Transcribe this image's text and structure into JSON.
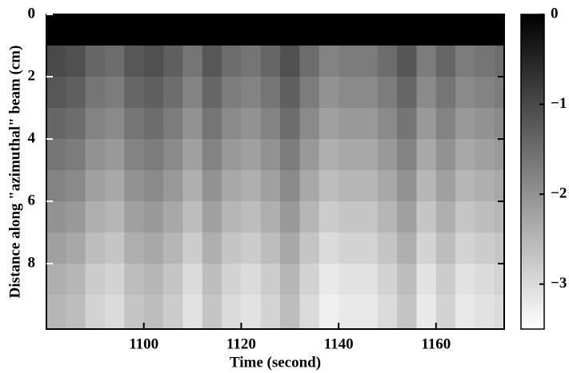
{
  "chart_data": {
    "type": "heatmap",
    "xlabel": "Time (second)",
    "ylabel": "Distance along  \"azimuthal\" beam (cm)",
    "x": [
      1082,
      1086,
      1090,
      1094,
      1098,
      1102,
      1106,
      1110,
      1114,
      1118,
      1122,
      1126,
      1130,
      1134,
      1138,
      1142,
      1146,
      1150,
      1154,
      1158,
      1162,
      1166,
      1170,
      1174
    ],
    "y": [
      0.5,
      1.5,
      2.5,
      3.5,
      4.5,
      5.5,
      6.5,
      7.5,
      8.5,
      9.5
    ],
    "z": [
      [
        0,
        0,
        0,
        0,
        0,
        0,
        0,
        0,
        0,
        0,
        0,
        0,
        0,
        0,
        0,
        0,
        0,
        0,
        0,
        0,
        0,
        0,
        0,
        0
      ],
      [
        -1.0,
        -1.1,
        -1.4,
        -1.5,
        -1.2,
        -1.1,
        -1.3,
        -1.6,
        -1.2,
        -1.5,
        -1.6,
        -1.4,
        -1.1,
        -1.5,
        -1.8,
        -1.7,
        -1.7,
        -1.5,
        -1.2,
        -1.7,
        -1.4,
        -1.7,
        -1.6,
        -1.5
      ],
      [
        -1.2,
        -1.3,
        -1.6,
        -1.7,
        -1.4,
        -1.3,
        -1.5,
        -1.8,
        -1.4,
        -1.7,
        -1.8,
        -1.6,
        -1.3,
        -1.7,
        -2.0,
        -1.9,
        -1.9,
        -1.7,
        -1.4,
        -1.9,
        -1.6,
        -1.9,
        -1.8,
        -1.7
      ],
      [
        -1.4,
        -1.5,
        -1.8,
        -1.9,
        -1.6,
        -1.5,
        -1.7,
        -2.0,
        -1.6,
        -1.9,
        -2.0,
        -1.8,
        -1.5,
        -1.9,
        -2.2,
        -2.1,
        -2.1,
        -1.9,
        -1.6,
        -2.1,
        -1.8,
        -2.1,
        -2.0,
        -1.9
      ],
      [
        -1.6,
        -1.7,
        -2.0,
        -2.1,
        -1.8,
        -1.7,
        -1.9,
        -2.2,
        -1.8,
        -2.1,
        -2.2,
        -2.0,
        -1.7,
        -2.1,
        -2.4,
        -2.3,
        -2.3,
        -2.1,
        -1.8,
        -2.3,
        -2.0,
        -2.3,
        -2.2,
        -2.1
      ],
      [
        -1.8,
        -1.9,
        -2.2,
        -2.3,
        -2.0,
        -1.9,
        -2.1,
        -2.4,
        -2.0,
        -2.3,
        -2.4,
        -2.2,
        -1.9,
        -2.3,
        -2.6,
        -2.5,
        -2.5,
        -2.3,
        -2.0,
        -2.5,
        -2.2,
        -2.5,
        -2.4,
        -2.3
      ],
      [
        -2.0,
        -2.1,
        -2.4,
        -2.5,
        -2.2,
        -2.1,
        -2.3,
        -2.6,
        -2.2,
        -2.5,
        -2.6,
        -2.4,
        -2.1,
        -2.5,
        -2.8,
        -2.7,
        -2.7,
        -2.5,
        -2.2,
        -2.7,
        -2.4,
        -2.7,
        -2.6,
        -2.5
      ],
      [
        -2.2,
        -2.3,
        -2.6,
        -2.7,
        -2.4,
        -2.3,
        -2.5,
        -2.8,
        -2.4,
        -2.7,
        -2.8,
        -2.6,
        -2.3,
        -2.7,
        -3.0,
        -2.9,
        -2.9,
        -2.7,
        -2.4,
        -2.9,
        -2.6,
        -2.9,
        -2.8,
        -2.7
      ],
      [
        -2.4,
        -2.5,
        -2.8,
        -2.9,
        -2.6,
        -2.5,
        -2.7,
        -3.0,
        -2.6,
        -2.9,
        -3.0,
        -2.8,
        -2.5,
        -2.9,
        -3.2,
        -3.1,
        -3.1,
        -2.9,
        -2.6,
        -3.1,
        -2.8,
        -3.1,
        -3.0,
        -2.9
      ],
      [
        -2.5,
        -2.6,
        -2.9,
        -3.0,
        -2.7,
        -2.6,
        -2.8,
        -3.1,
        -2.7,
        -3.0,
        -3.1,
        -2.9,
        -2.6,
        -3.0,
        -3.3,
        -3.2,
        -3.2,
        -3.0,
        -2.7,
        -3.2,
        -2.9,
        -3.2,
        -3.1,
        -3.0
      ]
    ],
    "xlim": [
      1080,
      1174
    ],
    "xticks": [
      1100,
      1120,
      1140,
      1160
    ],
    "ylim": [
      0,
      10.1
    ],
    "yticks": [
      0,
      2,
      4,
      6,
      8
    ],
    "y_inverted": true,
    "colormap": "gray",
    "clim": [
      -3.5,
      0
    ],
    "cticks": [
      0,
      {
        "value": -1,
        "label": "−1"
      },
      {
        "value": -2,
        "label": "−2"
      },
      {
        "value": -3,
        "label": "−3"
      }
    ]
  }
}
